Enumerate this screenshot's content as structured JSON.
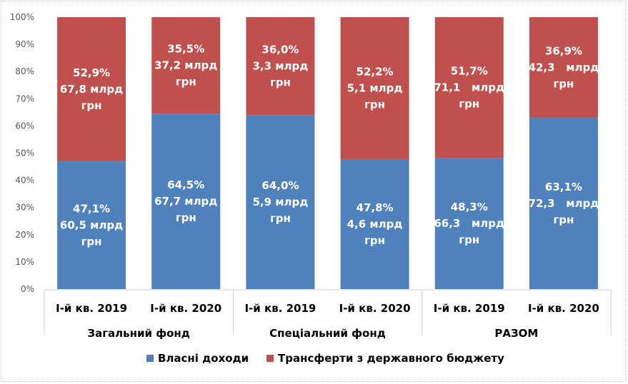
{
  "chart_data": {
    "type": "bar",
    "stacked": true,
    "percent": true,
    "title": "",
    "xlabel": "",
    "ylabel": "",
    "ylim": [
      0,
      100
    ],
    "yticks": [
      "0%",
      "10%",
      "20%",
      "30%",
      "40%",
      "50%",
      "60%",
      "70%",
      "80%",
      "90%",
      "100%"
    ],
    "groups": [
      {
        "name": "Загальний фонд",
        "categories": [
          "І-й кв. 2019",
          "І-й кв. 2020"
        ]
      },
      {
        "name": "Спеціальний фонд",
        "categories": [
          "І-й кв. 2019",
          "І-й кв. 2020"
        ]
      },
      {
        "name": "РАЗОМ",
        "categories": [
          "І-й кв. 2019",
          "І-й кв. 2020"
        ]
      }
    ],
    "categories": [
      "І-й кв. 2019",
      "І-й кв. 2020",
      "І-й кв. 2019",
      "І-й кв. 2020",
      "І-й кв. 2019",
      "І-й кв. 2020"
    ],
    "series": [
      {
        "name": "Власні доходи",
        "color": "#4f81bd",
        "values": [
          47.1,
          64.5,
          64.0,
          47.8,
          48.3,
          63.1
        ],
        "labels": [
          [
            "47,1%",
            "60,5 млрд",
            "грн"
          ],
          [
            "64,5%",
            "67,7 млрд",
            "грн"
          ],
          [
            "64,0%",
            "5,9 млрд",
            "грн"
          ],
          [
            "47,8%",
            "4,6 млрд",
            "грн"
          ],
          [
            "48,3%",
            "66,3   млрд",
            "грн"
          ],
          [
            "63,1%",
            "72,3   млрд",
            "грн"
          ]
        ]
      },
      {
        "name": "Трансферти з державного бюджету",
        "color": "#c0504d",
        "values": [
          52.9,
          35.5,
          36.0,
          52.2,
          51.7,
          36.9
        ],
        "labels": [
          [
            "52,9%",
            "67,8 млрд",
            "грн"
          ],
          [
            "35,5%",
            "37,2 млрд",
            "грн"
          ],
          [
            "36,0%",
            "3,3 млрд",
            "грн"
          ],
          [
            "52,2%",
            "5,1 млрд",
            "грн"
          ],
          [
            "51,7%",
            "71,1   млрд",
            "грн"
          ],
          [
            "36,9%",
            "42,3   млрд",
            "грн"
          ]
        ]
      }
    ],
    "legend_position": "bottom",
    "grid": false
  }
}
